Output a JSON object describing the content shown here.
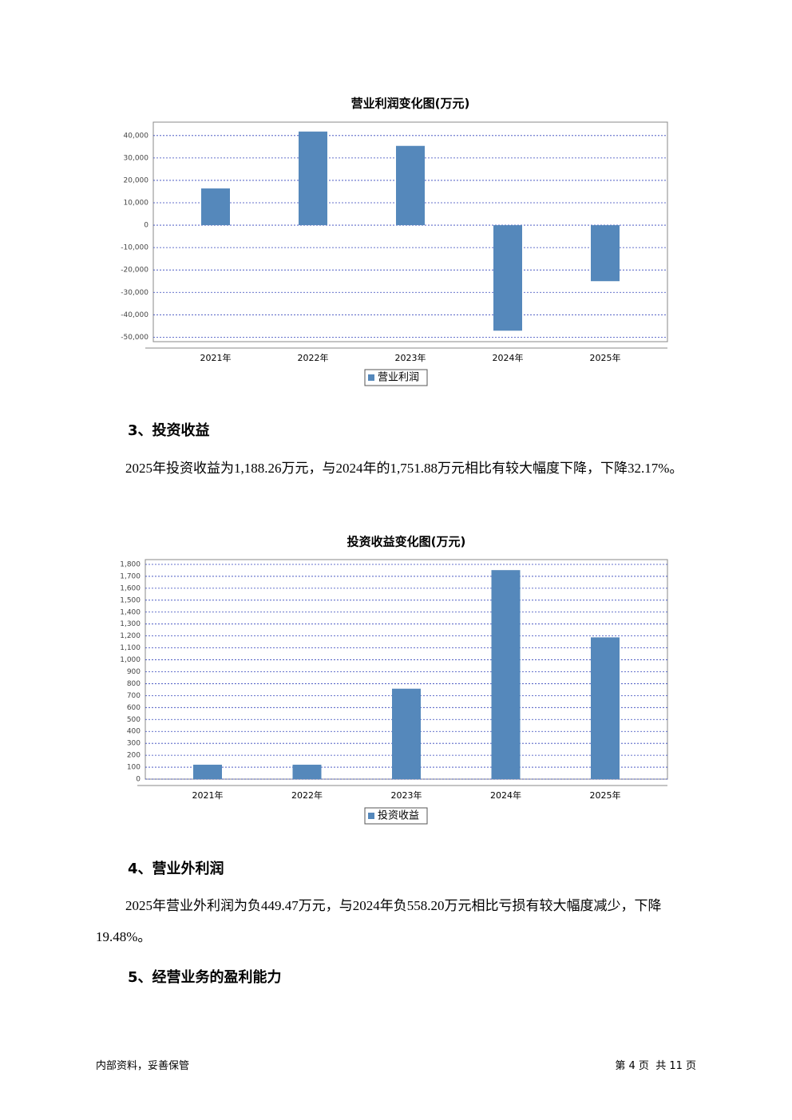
{
  "chart_data": [
    {
      "type": "bar",
      "title": "营业利润变化图(万元)",
      "categories": [
        "2021年",
        "2022年",
        "2023年",
        "2024年",
        "2025年"
      ],
      "series": [
        {
          "name": "营业利润",
          "color": "#5588bb",
          "values": [
            16400,
            41800,
            35400,
            -47100,
            -25000
          ]
        }
      ],
      "ylim": [
        -52000,
        46000
      ],
      "yticks": [
        {
          "value": -50000,
          "label": "-50,000"
        },
        {
          "value": -40000,
          "label": "-40,000"
        },
        {
          "value": -30000,
          "label": "-30,000"
        },
        {
          "value": -20000,
          "label": "-20,000"
        },
        {
          "value": -10000,
          "label": "-10,000"
        },
        0,
        {
          "value": 10000,
          "label": "10,000"
        },
        {
          "value": 20000,
          "label": "20,000"
        },
        {
          "value": 30000,
          "label": "30,000"
        },
        {
          "value": 40000,
          "label": "40,000"
        }
      ],
      "grid": true
    },
    {
      "type": "bar",
      "title": "投资收益变化图(万元)",
      "categories": [
        "2021年",
        "2022年",
        "2023年",
        "2024年",
        "2025年"
      ],
      "series": [
        {
          "name": "投资收益",
          "color": "#5588bb",
          "values": [
            121,
            121,
            758,
            1751.88,
            1188.26
          ]
        }
      ],
      "ylim": [
        0,
        1840
      ],
      "yticks": [
        0,
        100,
        200,
        300,
        400,
        500,
        600,
        700,
        800,
        900,
        {
          "value": 1000,
          "label": "1,000"
        },
        {
          "value": 1100,
          "label": "1,100"
        },
        {
          "value": 1200,
          "label": "1,200"
        },
        {
          "value": 1300,
          "label": "1,300"
        },
        {
          "value": 1400,
          "label": "1,400"
        },
        {
          "value": 1500,
          "label": "1,500"
        },
        {
          "value": 1600,
          "label": "1,600"
        },
        {
          "value": 1700,
          "label": "1,700"
        },
        {
          "value": 1800,
          "label": "1,800"
        }
      ],
      "grid": true
    }
  ],
  "sections": [
    {
      "heading": "3、投资收益",
      "paragraph": "2025年投资收益为1,188.26万元，与2024年的1,751.88万元相比有较大幅度下降，下降32.17%。"
    },
    {
      "heading": "4、营业外利润",
      "paragraph": "2025年营业外利润为负449.47万元，与2024年负558.20万元相比亏损有较大幅度减少，下降19.48%。"
    },
    {
      "heading": "5、经营业务的盈利能力"
    }
  ],
  "footer": {
    "left": "内部资料，妥善保管",
    "right": "第 4 页  共 11 页"
  }
}
